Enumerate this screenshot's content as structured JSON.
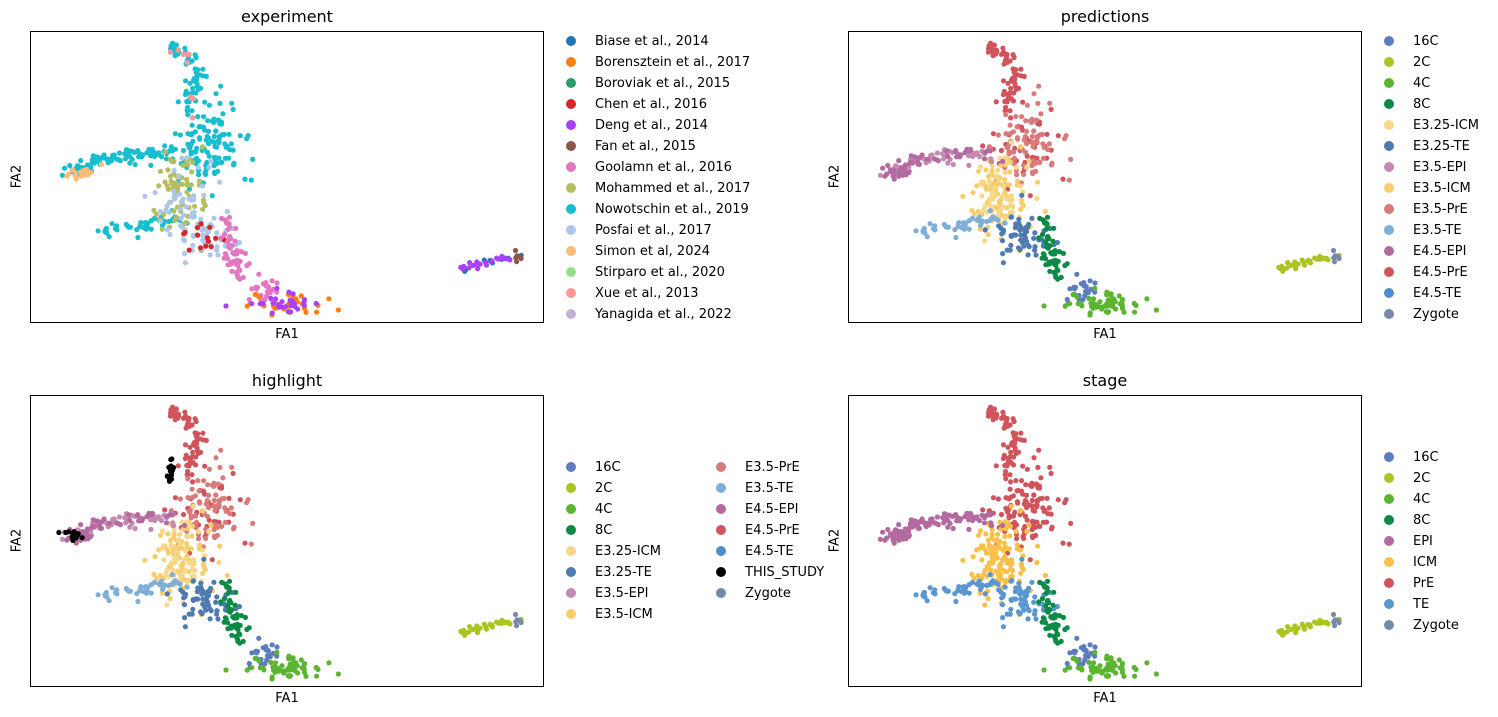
{
  "chart_data": [
    {
      "type": "scatter",
      "title": "experiment",
      "xlabel": "FA1",
      "ylabel": "FA2",
      "legend_placement": "right",
      "legend": [
        {
          "label": "Biase et al., 2014",
          "color": "#1f77b4"
        },
        {
          "label": "Borensztein et al., 2017",
          "color": "#ff7f0e"
        },
        {
          "label": "Boroviak et al., 2015",
          "color": "#279e68"
        },
        {
          "label": "Chen et al., 2016",
          "color": "#d62728"
        },
        {
          "label": "Deng et al., 2014",
          "color": "#aa40fc"
        },
        {
          "label": "Fan et al., 2015",
          "color": "#8c564b"
        },
        {
          "label": "Goolamn et al., 2016",
          "color": "#e377c2"
        },
        {
          "label": "Mohammed et al., 2017",
          "color": "#b5bd61"
        },
        {
          "label": "Nowotschin et al., 2019",
          "color": "#17becf"
        },
        {
          "label": "Posfai et al., 2017",
          "color": "#aec7e8"
        },
        {
          "label": "Simon et al, 2024",
          "color": "#ffbb78"
        },
        {
          "label": "Stirparo et al., 2020",
          "color": "#98df8a"
        },
        {
          "label": "Xue et al., 2013",
          "color": "#ff9896"
        },
        {
          "label": "Yanagida et al., 2022",
          "color": "#c5b0d5"
        }
      ]
    },
    {
      "type": "scatter",
      "title": "predictions",
      "xlabel": "FA1",
      "ylabel": "FA2",
      "legend_placement": "right",
      "legend": [
        {
          "label": "16C",
          "color": "#5d7cbf"
        },
        {
          "label": "2C",
          "color": "#abc421"
        },
        {
          "label": "4C",
          "color": "#5bb530"
        },
        {
          "label": "8C",
          "color": "#0b8a45"
        },
        {
          "label": "E3.25-ICM",
          "color": "#f7d88a"
        },
        {
          "label": "E3.25-TE",
          "color": "#4f7ab0"
        },
        {
          "label": "E3.5-EPI",
          "color": "#c58ab0"
        },
        {
          "label": "E3.5-ICM",
          "color": "#f7cd6e"
        },
        {
          "label": "E3.5-PrE",
          "color": "#d97b7b"
        },
        {
          "label": "E3.5-TE",
          "color": "#7faed6"
        },
        {
          "label": "E4.5-EPI",
          "color": "#b36aa0"
        },
        {
          "label": "E4.5-PrE",
          "color": "#d0545b"
        },
        {
          "label": "E4.5-TE",
          "color": "#4e8fcb"
        },
        {
          "label": "Zygote",
          "color": "#7788a8"
        }
      ]
    },
    {
      "type": "scatter",
      "title": "highlight",
      "xlabel": "FA1",
      "ylabel": "FA2",
      "legend_placement": "right",
      "legend": [
        {
          "label": "16C",
          "color": "#5d7cbf"
        },
        {
          "label": "2C",
          "color": "#abc421"
        },
        {
          "label": "4C",
          "color": "#5bb530"
        },
        {
          "label": "8C",
          "color": "#0b8a45"
        },
        {
          "label": "E3.25-ICM",
          "color": "#f7d88a"
        },
        {
          "label": "E3.25-TE",
          "color": "#4f7ab0"
        },
        {
          "label": "E3.5-EPI",
          "color": "#c58ab0"
        },
        {
          "label": "E3.5-ICM",
          "color": "#f7cd6e"
        },
        {
          "label": "E3.5-PrE",
          "color": "#d97b7b"
        },
        {
          "label": "E3.5-TE",
          "color": "#7faed6"
        },
        {
          "label": "E4.5-EPI",
          "color": "#b36aa0"
        },
        {
          "label": "E4.5-PrE",
          "color": "#d0545b"
        },
        {
          "label": "E4.5-TE",
          "color": "#4e8fcb"
        },
        {
          "label": "THIS_STUDY",
          "color": "#000000"
        },
        {
          "label": "Zygote",
          "color": "#7788a8"
        }
      ]
    },
    {
      "type": "scatter",
      "title": "stage",
      "xlabel": "FA1",
      "ylabel": "FA2",
      "legend_placement": "right",
      "legend": [
        {
          "label": "16C",
          "color": "#5d7cbf"
        },
        {
          "label": "2C",
          "color": "#abc421"
        },
        {
          "label": "4C",
          "color": "#5bb530"
        },
        {
          "label": "8C",
          "color": "#0b8a45"
        },
        {
          "label": "EPI",
          "color": "#b36aa0"
        },
        {
          "label": "ICM",
          "color": "#f7c04a"
        },
        {
          "label": "PrE",
          "color": "#d0545b"
        },
        {
          "label": "TE",
          "color": "#5a96cf"
        },
        {
          "label": "Zygote",
          "color": "#7788a8"
        }
      ]
    }
  ]
}
